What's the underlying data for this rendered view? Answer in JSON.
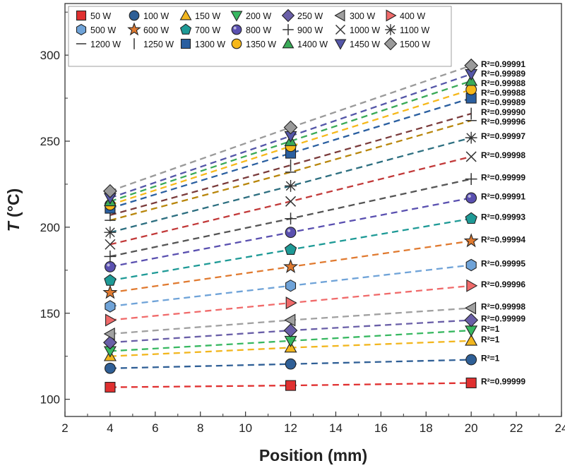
{
  "chart_data": {
    "type": "scatter",
    "title": "",
    "xlabel": "Position (mm)",
    "ylabel_italic": "T",
    "ylabel_unit": " (°C)",
    "xlim": [
      2,
      24
    ],
    "ylim": [
      90,
      330
    ],
    "xticks": [
      2,
      4,
      6,
      8,
      10,
      12,
      14,
      16,
      18,
      20,
      22,
      24
    ],
    "yticks": [
      100,
      150,
      200,
      250,
      300
    ],
    "legend_position": "top",
    "x": [
      4,
      12,
      20
    ],
    "series": [
      {
        "name": "50 W",
        "marker": "square",
        "color": "#e03030",
        "values": [
          107,
          108,
          109.5
        ],
        "r2": "R²=0.99999"
      },
      {
        "name": "100 W",
        "marker": "circle",
        "color": "#2f5f96",
        "values": [
          118,
          120.5,
          123
        ],
        "r2": "R²=1"
      },
      {
        "name": "150 W",
        "marker": "triangle-up",
        "color": "#f2b61e",
        "values": [
          125,
          130,
          134
        ],
        "r2": "R²=1"
      },
      {
        "name": "200 W",
        "marker": "triangle-down",
        "color": "#38b861",
        "values": [
          128,
          134,
          140
        ],
        "r2": "R²=1"
      },
      {
        "name": "250 W",
        "marker": "diamond",
        "color": "#6a5fa8",
        "values": [
          133,
          140,
          146
        ],
        "r2": "R²=0.99999"
      },
      {
        "name": "300 W",
        "marker": "triangle-left",
        "color": "#a0a0a0",
        "values": [
          138,
          146,
          153
        ],
        "r2": "R²=0.99998"
      },
      {
        "name": "400 W",
        "marker": "triangle-right",
        "color": "#f06a6a",
        "values": [
          146,
          156,
          166
        ],
        "r2": "R²=0.99996"
      },
      {
        "name": "500 W",
        "marker": "hexagon",
        "color": "#6fa3d8",
        "values": [
          154,
          166,
          178
        ],
        "r2": "R²=0.99995"
      },
      {
        "name": "600 W",
        "marker": "star",
        "color": "#e07a30",
        "values": [
          162,
          177,
          192
        ],
        "r2": "R²=0.99994"
      },
      {
        "name": "700 W",
        "marker": "pentagon",
        "color": "#1e9a96",
        "values": [
          169,
          187,
          205
        ],
        "r2": "R²=0.99993"
      },
      {
        "name": "800 W",
        "marker": "circle-dot",
        "color": "#5a50b0",
        "values": [
          177,
          197,
          217
        ],
        "r2": "R²=0.99991"
      },
      {
        "name": "900 W",
        "marker": "plus",
        "color": "#555555",
        "values": [
          183,
          205,
          228
        ],
        "r2": "R²=0.99999"
      },
      {
        "name": "1000 W",
        "marker": "x",
        "color": "#c23a3a",
        "values": [
          190,
          215,
          241
        ],
        "r2": "R²=0.99998"
      },
      {
        "name": "1100 W",
        "marker": "asterisk",
        "color": "#2d6f80",
        "values": [
          197,
          224,
          252
        ],
        "r2": "R²=0.99997"
      },
      {
        "name": "1200 W",
        "marker": "hline",
        "color": "#b8860b",
        "values": [
          204,
          232,
          262
        ],
        "r2": "R²=0.99996"
      },
      {
        "name": "1250 W",
        "marker": "vline",
        "color": "#7a3a3a",
        "values": [
          207,
          236,
          266
        ],
        "r2": "R²=0.99990"
      },
      {
        "name": "1300 W",
        "marker": "square",
        "color": "#2a5fa0",
        "values": [
          211,
          243,
          275
        ],
        "r2": "R²=0.99989"
      },
      {
        "name": "1350 W",
        "marker": "circle",
        "color": "#f6b81a",
        "values": [
          213,
          247,
          280
        ],
        "r2": "R²=0.99988"
      },
      {
        "name": "1400 W",
        "marker": "triangle-up",
        "color": "#3aaa58",
        "values": [
          215,
          250,
          285
        ],
        "r2": "R²=0.99988"
      },
      {
        "name": "1450 W",
        "marker": "triangle-down",
        "color": "#5456a8",
        "values": [
          217,
          253,
          289
        ],
        "r2": "R²=0.99989"
      },
      {
        "name": "1500 W",
        "marker": "diamond",
        "color": "#9a9a9a",
        "values": [
          221,
          258,
          294
        ],
        "r2": "R²=0.99991"
      }
    ]
  }
}
